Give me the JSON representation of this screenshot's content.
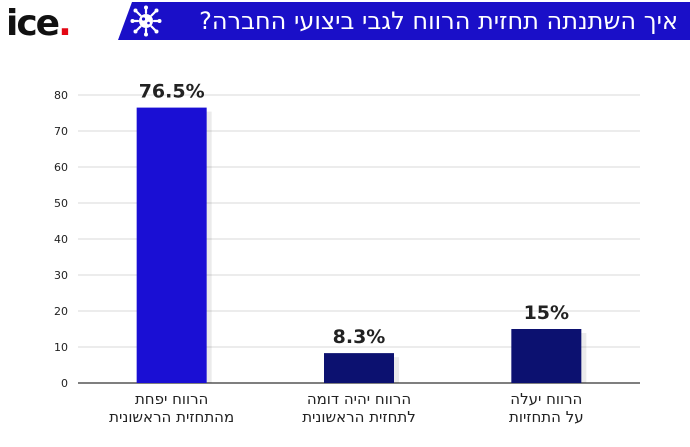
{
  "brand": {
    "logo_text": "ice",
    "logo_dot": ".",
    "logo_dot_color": "#e30613"
  },
  "header": {
    "title": "איך השתנתה תחזית הרווח לגבי ביצועי החברה?",
    "icon": "virus-icon",
    "background": "#1a0fc8"
  },
  "chart_data": {
    "type": "bar",
    "title": "איך השתנתה תחזית הרווח לגבי ביצועי החברה?",
    "categories": [
      [
        "הרווח יפחת",
        "מהתחזית הראשונית"
      ],
      [
        "הרווח יהיה דומה",
        "לתחזית הראשונית"
      ],
      [
        "הרווח יעלה",
        "על התחזיות"
      ]
    ],
    "values": [
      76.5,
      8.3,
      15
    ],
    "value_labels": [
      "76.5%",
      "8.3%",
      "15%"
    ],
    "bar_colors": [
      "#1a0fd4",
      "#0c1170",
      "#0c1170"
    ],
    "yticks": [
      0,
      10,
      20,
      30,
      40,
      50,
      60,
      70,
      80
    ],
    "ylim": [
      0,
      80
    ],
    "grid": true,
    "xlabel": "",
    "ylabel": ""
  }
}
